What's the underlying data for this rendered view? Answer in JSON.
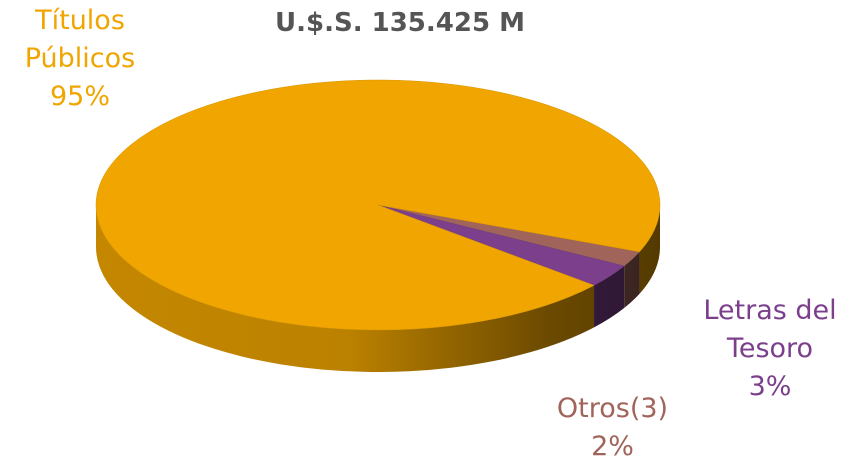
{
  "chart_data": {
    "type": "pie3d",
    "title": "U.$.S. 135.425 M",
    "categories": [
      "Títulos Públicos",
      "Letras del Tesoro",
      "Otros(3)"
    ],
    "values": [
      95,
      3,
      2
    ],
    "value_labels": [
      "95%",
      "3%",
      "2%"
    ],
    "colors": [
      "#f0a500",
      "#7b3f8c",
      "#a0645a"
    ]
  }
}
